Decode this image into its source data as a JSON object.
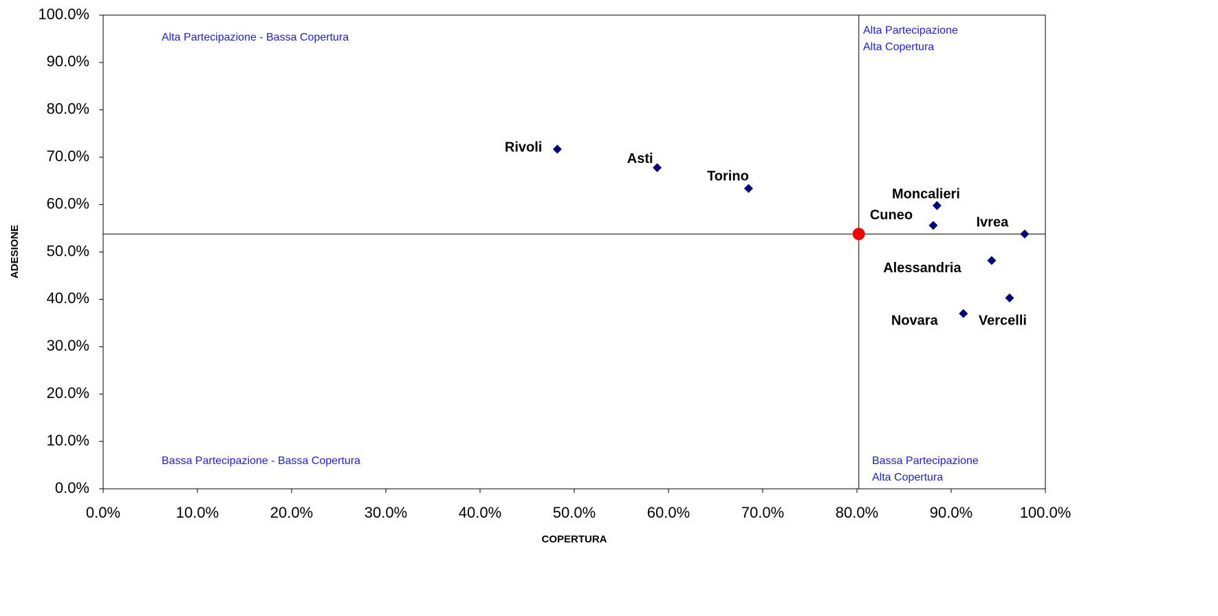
{
  "chart_data": {
    "type": "scatter",
    "xlabel": "COPERTURA",
    "ylabel": "ADESIONE",
    "xlim": [
      0,
      100
    ],
    "ylim": [
      0,
      100
    ],
    "xticks": [
      {
        "value": 0,
        "label": "0.0%"
      },
      {
        "value": 10,
        "label": "10.0%"
      },
      {
        "value": 20,
        "label": "20.0%"
      },
      {
        "value": 30,
        "label": "30.0%"
      },
      {
        "value": 40,
        "label": "40.0%"
      },
      {
        "value": 50,
        "label": "50.0%"
      },
      {
        "value": 60,
        "label": "60.0%"
      },
      {
        "value": 70,
        "label": "70.0%"
      },
      {
        "value": 80,
        "label": "80.0%"
      },
      {
        "value": 90,
        "label": "90.0%"
      },
      {
        "value": 100,
        "label": "100.0%"
      }
    ],
    "yticks": [
      {
        "value": 0,
        "label": "0.0%"
      },
      {
        "value": 10,
        "label": "10.0%"
      },
      {
        "value": 20,
        "label": "20.0%"
      },
      {
        "value": 30,
        "label": "30.0%"
      },
      {
        "value": 40,
        "label": "40.0%"
      },
      {
        "value": 50,
        "label": "50.0%"
      },
      {
        "value": 60,
        "label": "60.0%"
      },
      {
        "value": 70,
        "label": "70.0%"
      },
      {
        "value": 80,
        "label": "80.0%"
      },
      {
        "value": 90,
        "label": "90.0%"
      },
      {
        "value": 100,
        "label": "100.0%"
      }
    ],
    "points": {
      "color": "#000080",
      "labels": [
        "Rivoli",
        "Asti",
        "Torino",
        "Moncalieri",
        "Cuneo",
        "Ivrea",
        "Alessandria",
        "Vercelli",
        "Novara"
      ],
      "x": [
        48.2,
        58.8,
        68.5,
        88.5,
        88.1,
        97.8,
        94.3,
        96.2,
        91.3
      ],
      "y": [
        71.7,
        67.8,
        63.4,
        59.8,
        55.6,
        53.8,
        48.2,
        40.3,
        37.0
      ]
    },
    "reference": {
      "color": "#ff0000",
      "x": 80.2,
      "y": 53.8
    },
    "annotations": [
      {
        "lines": [
          "Alta Partecipazione - Bassa Copertura"
        ]
      },
      {
        "lines": [
          "Alta Partecipazione",
          "Alta Copertura"
        ]
      },
      {
        "lines": [
          "Bassa Partecipazione - Bassa Copertura"
        ]
      },
      {
        "lines": [
          "Bassa Partecipazione",
          "Alta Copertura"
        ]
      }
    ]
  }
}
